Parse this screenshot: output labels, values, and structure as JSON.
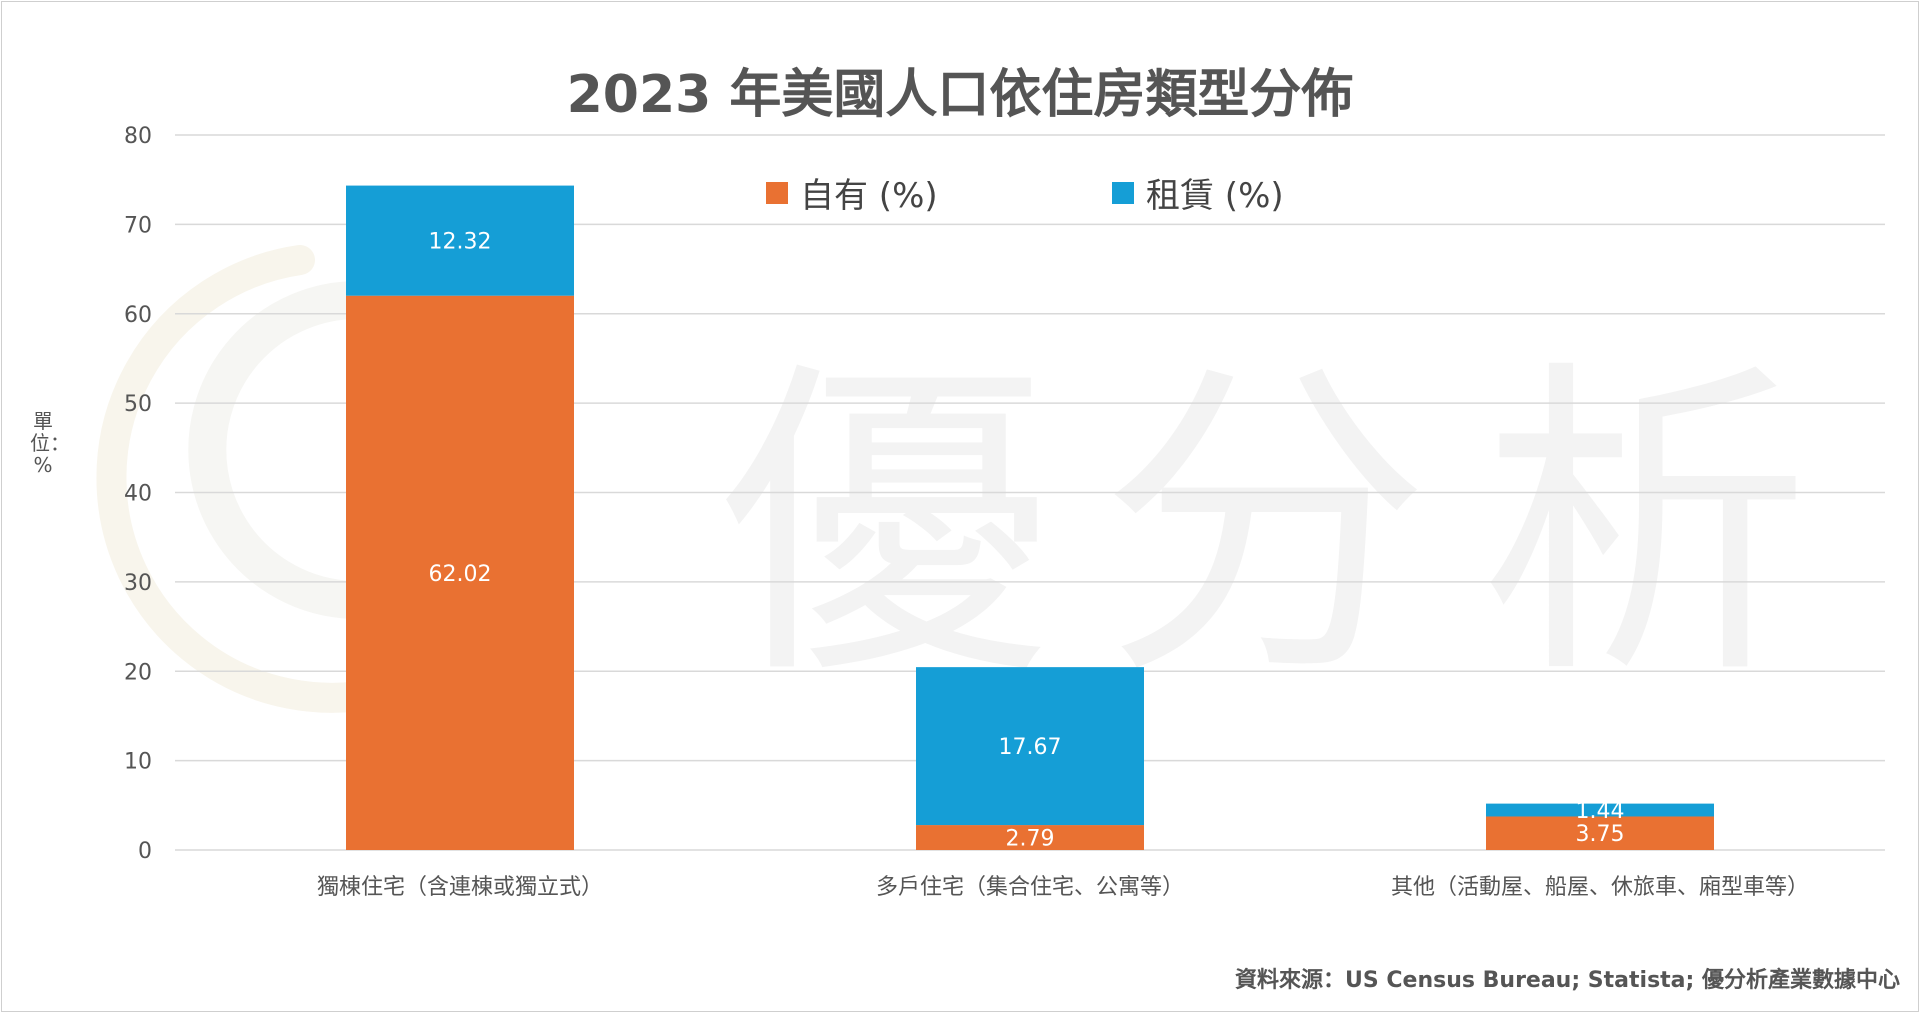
{
  "chart_data": {
    "type": "bar",
    "stacked": true,
    "title": "2023 年美國人口依住房類型分佈",
    "ylabel": "單位：%",
    "ylim": [
      0,
      80
    ],
    "yticks": [
      0,
      10,
      20,
      30,
      40,
      50,
      60,
      70,
      80
    ],
    "categories": [
      "獨棟住宅（含連棟或獨立式）",
      "多戶住宅（集合住宅、公寓等）",
      "其他（活動屋、船屋、休旅車、廂型車等）"
    ],
    "series": [
      {
        "name": "自有 (%)",
        "color": "#E97132",
        "values": [
          62.02,
          2.79,
          3.75
        ],
        "labels": [
          "62.02",
          "2.79",
          "3.75"
        ]
      },
      {
        "name": "租賃 (%)",
        "color": "#159ED6",
        "values": [
          12.32,
          17.67,
          1.44
        ],
        "labels": [
          "12.32",
          "17.67",
          "1.44"
        ]
      }
    ],
    "legend_position": "top",
    "grid": true
  },
  "source": "資料來源：US Census Bureau; Statista; 優分析產業數據中心",
  "watermark_text": "優分析"
}
